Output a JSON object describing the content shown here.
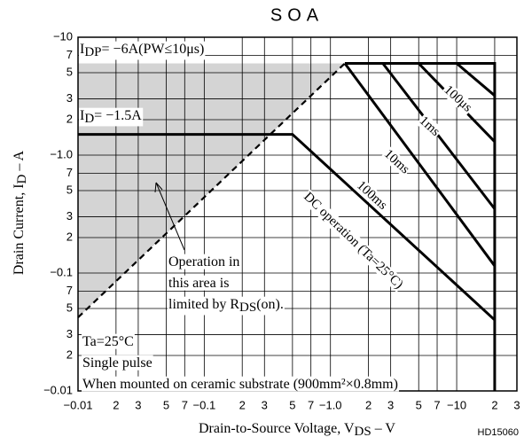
{
  "chart_data": {
    "type": "line",
    "title": "SOA",
    "xlabel": [
      "Drain-to-Source Voltage, V",
      "DS",
      " – V"
    ],
    "ylabel": [
      "Drain Current, I",
      "D",
      " – A"
    ],
    "xscale": "log",
    "yscale": "log",
    "grid": true,
    "xlim": [
      0.01,
      30
    ],
    "ylim": [
      0.01,
      10
    ],
    "xticks": [
      {
        "value": 0.01,
        "label": "−0.01"
      },
      {
        "value": 0.02,
        "label": "2"
      },
      {
        "value": 0.03,
        "label": "3"
      },
      {
        "value": 0.05,
        "label": "5"
      },
      {
        "value": 0.07,
        "label": "7"
      },
      {
        "value": 0.1,
        "label": "−0.1"
      },
      {
        "value": 0.2,
        "label": "2"
      },
      {
        "value": 0.3,
        "label": "3"
      },
      {
        "value": 0.5,
        "label": "5"
      },
      {
        "value": 0.7,
        "label": "7"
      },
      {
        "value": 1,
        "label": "−1.0"
      },
      2,
      3,
      5,
      7,
      {
        "value": 10,
        "label": "−10"
      },
      {
        "value": 20,
        "label": "2"
      },
      {
        "value": 30,
        "label": "3"
      }
    ],
    "yticks": [
      {
        "value": 0.01,
        "label": "−0.01"
      },
      {
        "value": 0.02,
        "label": "2"
      },
      {
        "value": 0.03,
        "label": "3"
      },
      {
        "value": 0.05,
        "label": "5"
      },
      {
        "value": 0.07,
        "label": "7"
      },
      {
        "value": 0.1,
        "label": "−0.1"
      },
      {
        "value": 0.2,
        "label": "2"
      },
      {
        "value": 0.3,
        "label": "3"
      },
      {
        "value": 0.5,
        "label": "5"
      },
      {
        "value": 0.7,
        "label": "7"
      },
      {
        "value": 1,
        "label": "−1.0"
      },
      2,
      3,
      5,
      7,
      {
        "value": 10,
        "label": "−10"
      }
    ],
    "series": [
      {
        "color": "#000000",
        "x": [
          1.3,
          20,
          20
        ],
        "values": [
          6,
          6,
          0.01
        ]
      },
      {
        "name": "100μs",
        "color": "#000000",
        "x": [
          10,
          20
        ],
        "values": [
          6,
          3.2
        ]
      },
      {
        "name": "1ms",
        "color": "#000000",
        "x": [
          5,
          20
        ],
        "values": [
          6,
          1.3
        ]
      },
      {
        "name": "10ms",
        "color": "#000000",
        "x": [
          2.6,
          20
        ],
        "values": [
          6,
          0.35
        ]
      },
      {
        "name": "100ms",
        "color": "#000000",
        "x": [
          1.3,
          20
        ],
        "values": [
          6,
          0.115
        ]
      },
      {
        "name": "DC operation (Ta=25°C)",
        "color": "#000000",
        "x": [
          0.01,
          0.5,
          20
        ],
        "values": [
          1.5,
          1.5,
          0.04
        ]
      },
      {
        "color": "#000000",
        "line_style": "dashed",
        "shade_color": "#d4d4d4",
        "x": [
          0.01,
          1.3
        ],
        "values": [
          0.042,
          6
        ]
      }
    ],
    "annotations": [
      {
        "lines": [
          [
            "I",
            "DP",
            "= −6A(PW≤10μs)"
          ]
        ]
      },
      {
        "lines": [
          [
            "I",
            "D",
            "= −1.5A"
          ]
        ]
      },
      {
        "lines": [
          [
            "Operation in"
          ],
          [
            "this area is"
          ],
          [
            "limited by R",
            "DS",
            "(on)."
          ]
        ]
      },
      {
        "lines": [
          [
            "Ta=25°C"
          ],
          [
            "Single pulse"
          ],
          [
            "When mounted on ceramic substrate (900mm²×0.8mm)"
          ]
        ]
      }
    ],
    "code": "HD15060"
  }
}
